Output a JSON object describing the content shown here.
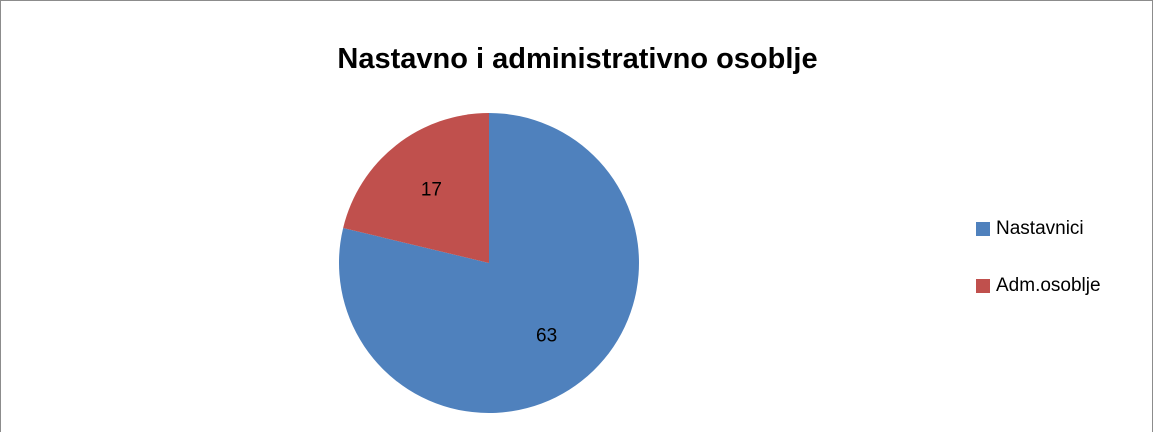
{
  "chart_data": {
    "type": "pie",
    "title": "Nastavno i administrativno osoblje",
    "categories": [
      "Nastavnici",
      "Adm.osoblje"
    ],
    "values": [
      63,
      17
    ],
    "data_labels": [
      "63",
      "17"
    ],
    "colors": [
      "#4f81bd",
      "#c0504d"
    ],
    "start_angle_deg": 0,
    "direction": "clockwise",
    "legend_position": "right"
  }
}
